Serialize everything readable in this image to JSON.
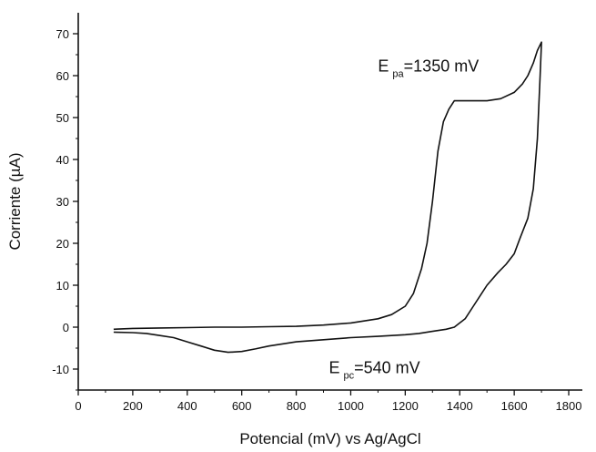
{
  "chart_data": {
    "type": "line",
    "title": "",
    "xlabel": "Potencial (mV) vs Ag/AgCl",
    "ylabel": "Corriente (µA)",
    "xlim": [
      0,
      1850
    ],
    "ylim": [
      -15,
      75
    ],
    "x_ticks": [
      0,
      200,
      400,
      600,
      800,
      1000,
      1200,
      1400,
      1600,
      1800
    ],
    "y_ticks": [
      -10,
      0,
      10,
      20,
      30,
      40,
      50,
      60,
      70
    ],
    "grid": false,
    "legend": "none",
    "line_color": "#111111",
    "series": [
      {
        "name": "",
        "x": [
          130,
          200,
          300,
          400,
          500,
          600,
          700,
          800,
          900,
          1000,
          1100,
          1150,
          1200,
          1230,
          1260,
          1280,
          1300,
          1320,
          1340,
          1360,
          1380,
          1400,
          1450,
          1500,
          1550,
          1600,
          1630,
          1650,
          1670,
          1685,
          1700,
          1695,
          1685,
          1670,
          1650,
          1620,
          1600,
          1570,
          1540,
          1500,
          1480,
          1450,
          1420,
          1400,
          1380,
          1350,
          1300,
          1250,
          1200,
          1150,
          1100,
          1000,
          900,
          800,
          700,
          650,
          600,
          550,
          500,
          450,
          400,
          350,
          300,
          250,
          200,
          130
        ],
        "y": [
          -0.5,
          -0.3,
          -0.2,
          -0.1,
          0,
          0,
          0.1,
          0.2,
          0.5,
          1,
          2,
          3,
          5,
          8,
          14,
          20,
          30,
          42,
          49,
          52,
          54,
          54,
          54,
          54,
          54.5,
          56,
          58,
          60,
          63,
          66,
          68,
          60,
          45,
          33,
          26,
          21,
          17.5,
          15,
          13,
          10,
          8,
          5,
          2,
          1,
          0,
          -0.5,
          -1,
          -1.5,
          -1.8,
          -2,
          -2.2,
          -2.5,
          -3,
          -3.5,
          -4.5,
          -5.2,
          -5.8,
          -6,
          -5.5,
          -4.5,
          -3.5,
          -2.5,
          -2,
          -1.5,
          -1.3,
          -1.2
        ]
      }
    ],
    "annotations": [
      {
        "base": "E",
        "sub": "pa",
        "tail": "=1350 mV",
        "x": 1100,
        "y": 61
      },
      {
        "base": "E",
        "sub": "pc",
        "tail": "=540 mV",
        "x": 920,
        "y": -11
      }
    ]
  }
}
